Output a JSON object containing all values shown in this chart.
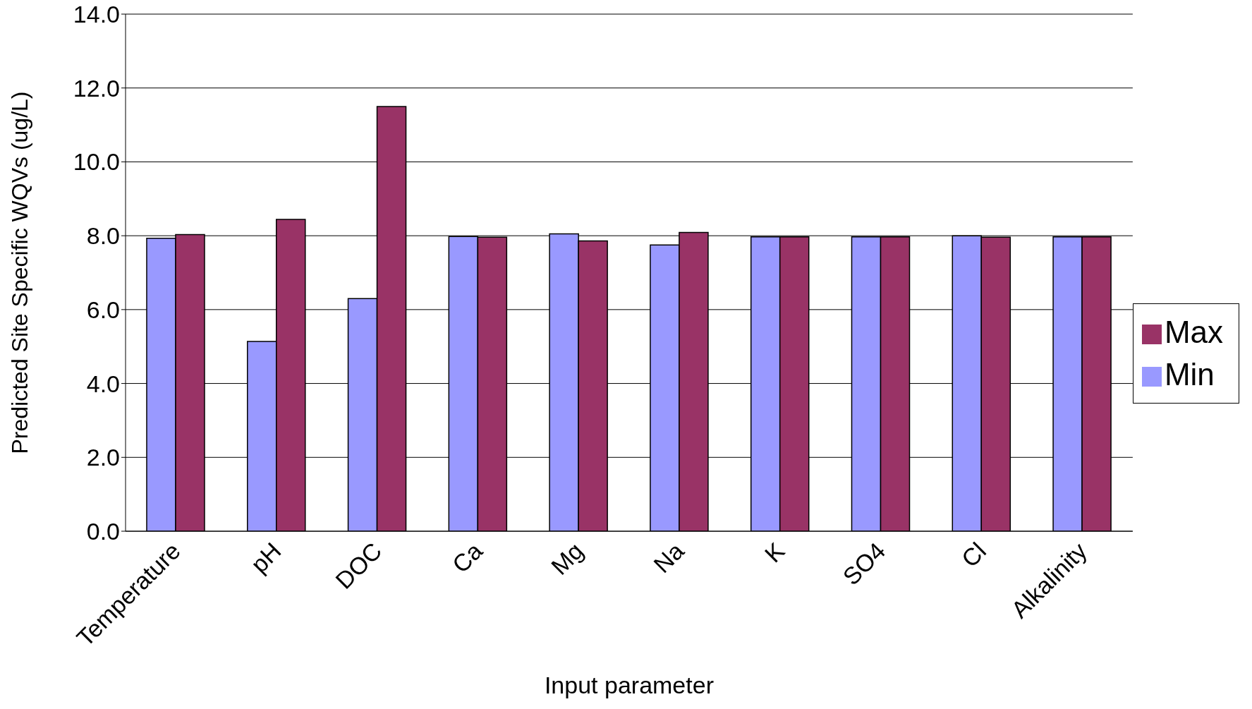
{
  "chart_data": {
    "type": "bar",
    "xlabel": "Input parameter",
    "ylabel": "Predicted Site Specific WQVs (ug/L)",
    "categories": [
      "Temperature",
      "pH",
      "DOC",
      "Ca",
      "Mg",
      "Na",
      "K",
      "SO4",
      "Cl",
      "Alkalinity"
    ],
    "series": [
      {
        "name": "Min",
        "color": "#9999ff",
        "values": [
          7.93,
          5.14,
          6.3,
          7.98,
          8.05,
          7.75,
          7.97,
          7.97,
          8.0,
          7.97
        ]
      },
      {
        "name": "Max",
        "color": "#993366",
        "values": [
          8.03,
          8.44,
          11.5,
          7.96,
          7.86,
          8.09,
          7.97,
          7.97,
          7.96,
          7.97
        ]
      }
    ],
    "ylim": [
      0,
      14
    ],
    "yticks": [
      {
        "value": 0,
        "label": "0.0"
      },
      {
        "value": 2,
        "label": "2.0"
      },
      {
        "value": 4,
        "label": "4.0"
      },
      {
        "value": 6,
        "label": "6.0"
      },
      {
        "value": 8,
        "label": "8.0"
      },
      {
        "value": 10,
        "label": "10.0"
      },
      {
        "value": 12,
        "label": "12.0"
      },
      {
        "value": 14,
        "label": "14.0"
      }
    ],
    "grid": "y",
    "legend": "right"
  }
}
